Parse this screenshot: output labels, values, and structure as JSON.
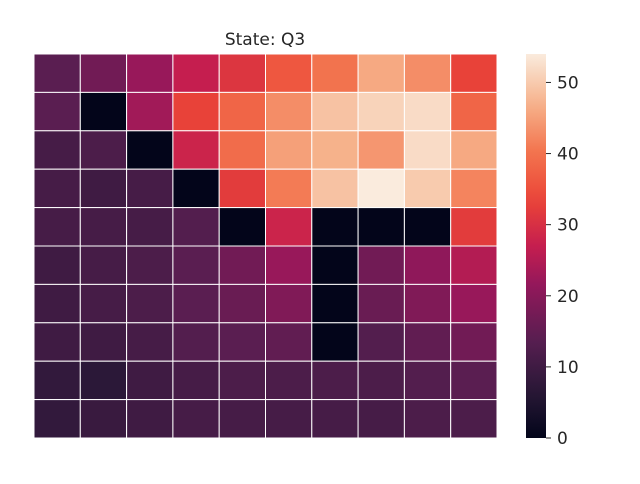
{
  "chart_data": {
    "type": "heatmap",
    "title": "State: Q3",
    "xlabel": "",
    "ylabel": "",
    "rows": 10,
    "cols": 10,
    "values": [
      [
        14,
        17,
        22,
        27,
        31,
        36,
        40,
        46,
        43,
        33
      ],
      [
        14,
        0,
        23,
        33,
        38,
        43,
        49,
        51,
        52,
        38
      ],
      [
        11,
        12,
        0,
        28,
        39,
        45,
        47,
        44,
        52,
        46
      ],
      [
        11,
        10,
        11,
        0,
        32,
        41,
        49,
        54,
        50,
        42
      ],
      [
        11,
        11,
        11,
        13,
        0,
        28,
        0,
        0,
        0,
        32
      ],
      [
        10,
        11,
        12,
        14,
        17,
        22,
        0,
        17,
        21,
        25
      ],
      [
        10,
        11,
        12,
        14,
        16,
        19,
        0,
        16,
        19,
        22
      ],
      [
        10,
        10,
        11,
        13,
        14,
        15,
        0,
        13,
        15,
        17
      ],
      [
        8,
        7,
        10,
        11,
        12,
        12,
        12,
        12,
        13,
        14
      ],
      [
        8,
        9,
        10,
        11,
        11,
        11,
        11,
        11,
        12,
        12
      ]
    ],
    "colorbar": {
      "min": 0,
      "max": 54,
      "ticks": [
        "0",
        "10",
        "20",
        "30",
        "40",
        "50"
      ],
      "colormap": "rocket"
    },
    "grid": true,
    "gridline_color": "#ffffff"
  }
}
